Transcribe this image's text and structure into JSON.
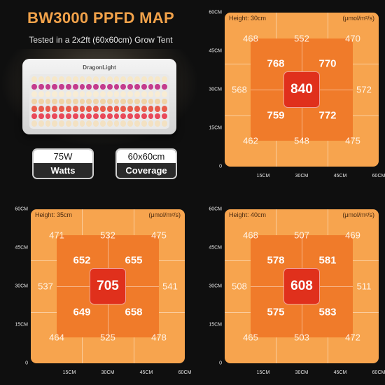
{
  "product": {
    "title": "BW3000 PPFD MAP",
    "subtitle": "Tested in a 2x2ft (60x60cm) Grow Tent",
    "brand": "DragonLight",
    "specs": [
      {
        "top": "75W",
        "bottom": "Watts"
      },
      {
        "top": "60x60cm",
        "bottom": "Coverage"
      }
    ]
  },
  "colors": {
    "outer_zone": "#f7a44e",
    "middle_zone": "#f07b2a",
    "center_zone": "#e0301c",
    "title_accent": "#f2a24a"
  },
  "axis": {
    "y_ticks": [
      "60CM",
      "45CM",
      "30CM",
      "15CM",
      "0"
    ],
    "x_ticks": [
      "15CM",
      "30CM",
      "45CM",
      "60CM"
    ]
  },
  "maps": [
    {
      "height_label": "Height: 30cm",
      "unit": "(μmol/m²/s)",
      "outer": [
        "468",
        "552",
        "470",
        "568",
        "572",
        "462",
        "548",
        "475"
      ],
      "inner": [
        "768",
        "770",
        "759",
        "772"
      ],
      "center": "840"
    },
    {
      "height_label": "Height: 35cm",
      "unit": "(μmol/m²/s)",
      "outer": [
        "471",
        "532",
        "475",
        "537",
        "541",
        "464",
        "525",
        "478"
      ],
      "inner": [
        "652",
        "655",
        "649",
        "658"
      ],
      "center": "705"
    },
    {
      "height_label": "Height: 40cm",
      "unit": "(μmol/m²/s)",
      "outer": [
        "468",
        "507",
        "469",
        "508",
        "511",
        "465",
        "503",
        "472"
      ],
      "inner": [
        "578",
        "581",
        "575",
        "583"
      ],
      "center": "608"
    }
  ]
}
